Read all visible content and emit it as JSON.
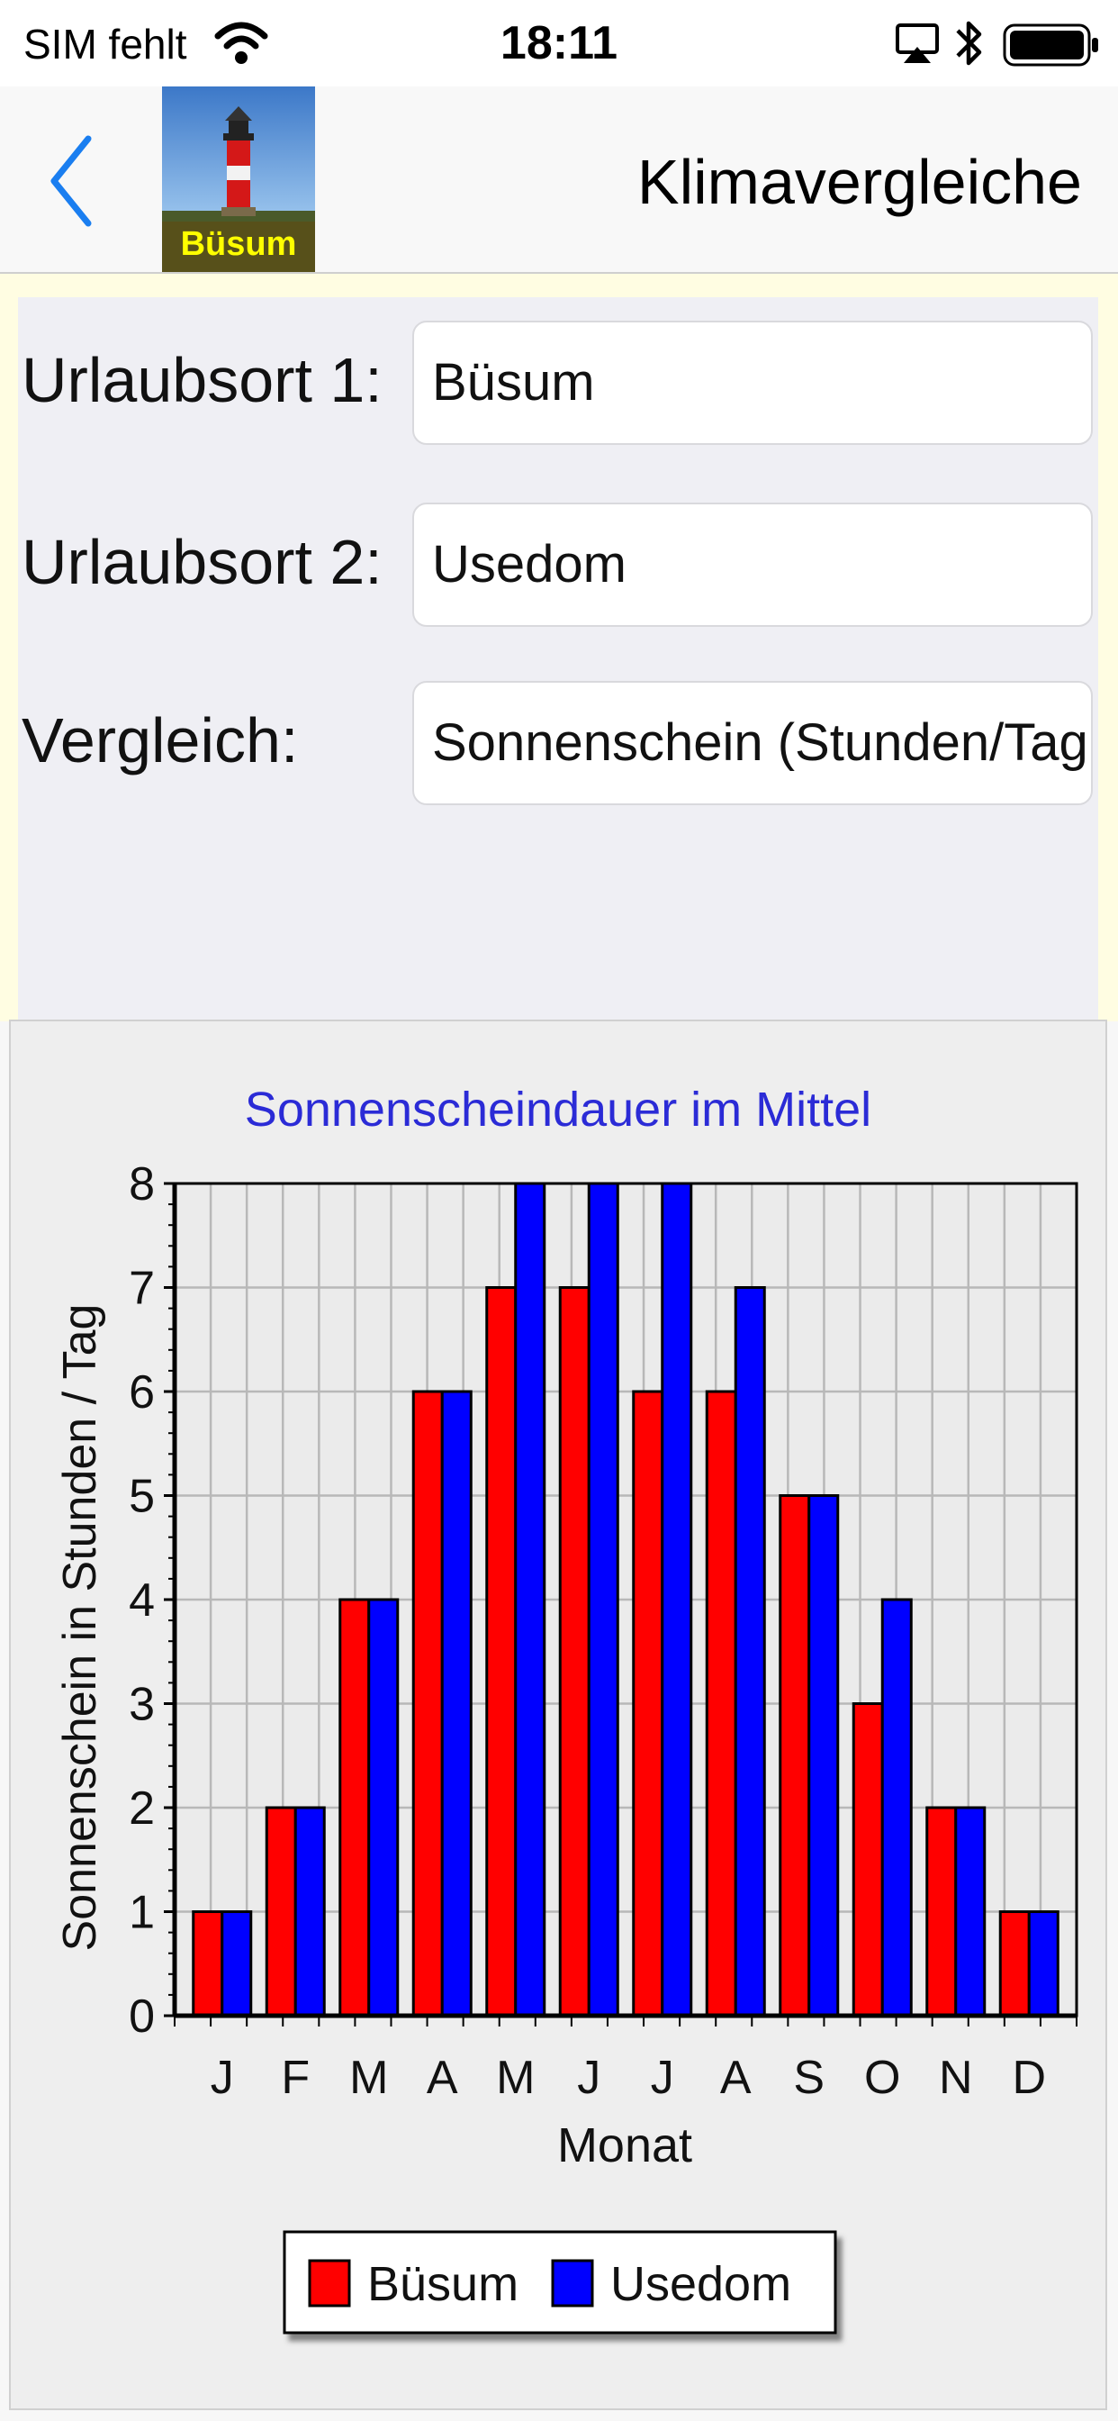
{
  "status_bar": {
    "carrier": "SIM fehlt",
    "time": "18:11"
  },
  "nav": {
    "title": "Klimavergleiche",
    "logo_label": "Büsum",
    "back_icon": "chevron-left-icon"
  },
  "form": {
    "location1": {
      "label": "Urlaubsort 1:",
      "value": "Büsum"
    },
    "location2": {
      "label": "Urlaubsort 2:",
      "value": "Usedom"
    },
    "comparison": {
      "label": "Vergleich:",
      "value": "Sonnenschein (Stunden/Tag"
    }
  },
  "colors": {
    "accent": "#1a7ef0",
    "series1": "#ff0000",
    "series2": "#0000ff",
    "chart_title": "#2b2bd6"
  },
  "chart_data": {
    "type": "bar",
    "title": "Sonnenscheindauer im Mittel",
    "xlabel": "Monat",
    "ylabel": "Sonnenschein in Stunden / Tag",
    "categories": [
      "J",
      "F",
      "M",
      "A",
      "M",
      "J",
      "J",
      "A",
      "S",
      "O",
      "N",
      "D"
    ],
    "series": [
      {
        "name": "Büsum",
        "color": "#ff0000",
        "values": [
          1,
          2,
          4,
          6,
          7,
          7,
          6,
          6,
          5,
          3,
          2,
          1
        ]
      },
      {
        "name": "Usedom",
        "color": "#0000ff",
        "values": [
          1,
          2,
          4,
          6,
          8,
          8,
          8,
          7,
          5,
          4,
          2,
          1
        ]
      }
    ],
    "ylim": [
      0,
      8
    ],
    "yticks": [
      "0",
      "1",
      "2",
      "3",
      "4",
      "5",
      "6",
      "7",
      "8"
    ],
    "grid": true,
    "legend_position": "bottom-center"
  }
}
